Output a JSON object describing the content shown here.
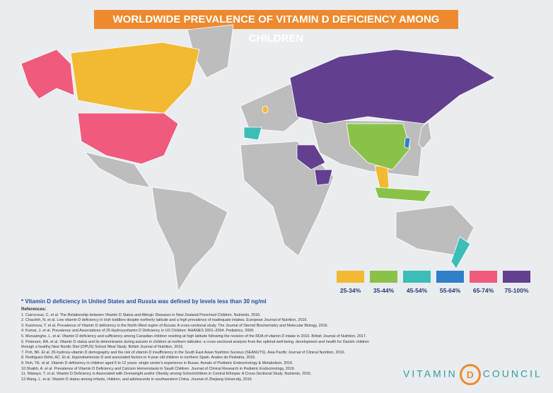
{
  "header": {
    "title": "WORLDWIDE PREVALENCE OF VITAMIN D DEFICIENCY AMONG CHILDREN"
  },
  "legend": [
    {
      "label": "25-34%",
      "color": "#f2b933"
    },
    {
      "label": "35-44%",
      "color": "#8ac249"
    },
    {
      "label": "45-54%",
      "color": "#3dbdb8"
    },
    {
      "label": "55-64%",
      "color": "#2f7fc9"
    },
    {
      "label": "65-74%",
      "color": "#ef5b7c"
    },
    {
      "label": "75-100%",
      "color": "#62408f"
    }
  ],
  "note": "* Vitamin D deficiency in United States and Russia was defined by levels less than 30 ng/ml",
  "references": {
    "heading": "References:",
    "items": [
      "1. Cairncross, C. et al. The Relationship between Vitamin D Status and Allergic Diseases in New Zealand Preschool Children. Nutrients, 2016.",
      "2. Chacimh, N. et al. Low vitamin D deficiency in Irish toddlers despite northerly latitude and a high prevalence of inadequate intakes. European Journal of Nutrition, 2016.",
      "3. Karonova, T. et al. Prevalence of Vitamin D deficiency in the North-West region of Russia: A cross-sectional study. The Journal of Steroid Biochemistry and Molecular Biology, 2016.",
      "4. Kumar, J. et al. Prevalence and Associations of 25-Hydroxyvitamin D Deficiency in US Children: NHANES 2001–2004. Pediatrics, 2009.",
      "5. Munasinghe, L. et al. Vitamin D deficiency and sufficiency among Canadian children residing at high latitude following the revision of the RDA of vitamin D intake in 2010. British Journal of Nutrition, 2017.",
      "6. Petersen, RA. et al. Vitamin D status and its determinants during autumn in children at northern latitudes: a cross-sectional analysis from the optimal well-being, development and health for Danish children through a healthy New Nordic Diet (OPUS) School Meal Study. British Journal of Nutrition, 2016.",
      "7. Poh, BK. Et al. 25-hydroxy-vitamin D demography and the risk of vitamin D insufficiency in the South East Asian Nutrition Surveys (SEANUTS). Asia Pacific Journal of Clinical Nutrition, 2016.",
      "8. Rodriguez-Dehli, AC. Et al. Hypovitaminosis D and associated factors in 4-year old children in northern Spain. Anales de Pediatria, 2016.",
      "9. Roh, YE. et al. Vitamin D deficiency in children aged 6 to 12 years: single center's experience in Busan. Annals of Pediatric Endocrinology & Metabolism, 2016.",
      "10.Shaikh, A. et al. Prevalence of Vitamin D Deficiency and Calcium Homeostasis in Saudi Children. Journal of Clinical Research in Pediatric Endocrinology, 2016.",
      "11. Wakayo, T. et al. Vitamin D Deficiency is Associated with Overweight and/or Obesity among Schoolchildren in Central Ethiopia: A Cross-Sectional Study. Nutrients, 2016.",
      "12.Wang, L. et al. Vitamin D status among infants, children, and adolescents in southwestern China. Journal of Zhejiang University, 2016."
    ]
  },
  "logo": {
    "left": "VITAMIN",
    "mark": "D",
    "right": "COUNCIL"
  }
}
